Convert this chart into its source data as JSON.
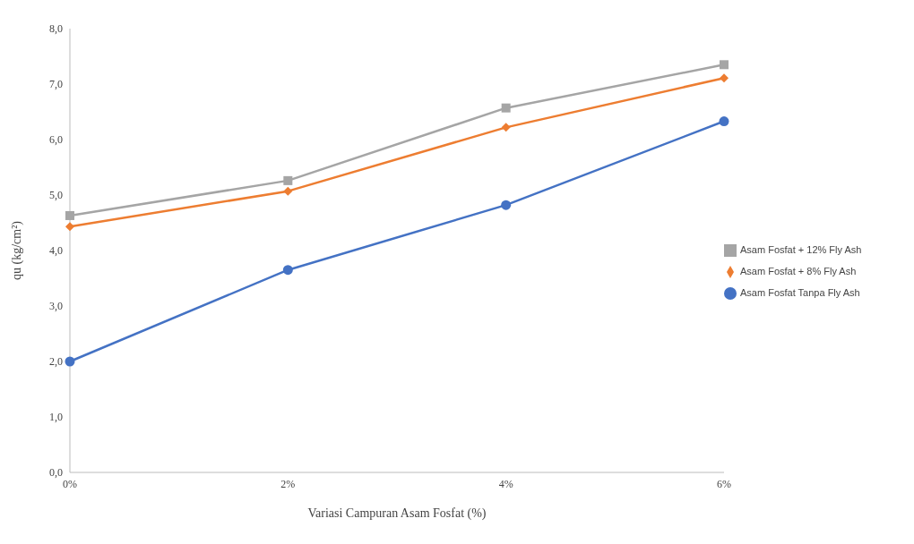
{
  "chart_data": {
    "type": "line",
    "xlabel": "Variasi Campuran Asam Fosfat (%)",
    "ylabel": "qu (kg/cm²)",
    "categories": [
      "0%",
      "2%",
      "4%",
      "6%"
    ],
    "series": [
      {
        "name": "Asam Fosfat + 12% Fly Ash",
        "color": "#a5a5a5",
        "marker": "square",
        "values": [
          4.63,
          5.26,
          6.57,
          7.35
        ]
      },
      {
        "name": "Asam Fosfat + 8% Fly Ash",
        "color": "#ed7d31",
        "marker": "diamond",
        "values": [
          4.43,
          5.07,
          6.22,
          7.11
        ]
      },
      {
        "name": "Asam Fosfat Tanpa Fly Ash",
        "color": "#4472c4",
        "marker": "circle",
        "values": [
          2.0,
          3.65,
          4.82,
          6.33
        ]
      }
    ],
    "ylim": [
      0,
      8
    ],
    "yticks": [
      {
        "value": 0,
        "label": "0,0"
      },
      {
        "value": 1,
        "label": "1,0"
      },
      {
        "value": 2,
        "label": "2,0"
      },
      {
        "value": 3,
        "label": "3,0"
      },
      {
        "value": 4,
        "label": "4,0"
      },
      {
        "value": 5,
        "label": "5,0"
      },
      {
        "value": 6,
        "label": "6,0"
      },
      {
        "value": 7,
        "label": "7,0"
      },
      {
        "value": 8,
        "label": "8,0"
      }
    ],
    "grid": false,
    "legend": "right",
    "line_style": "solid"
  }
}
